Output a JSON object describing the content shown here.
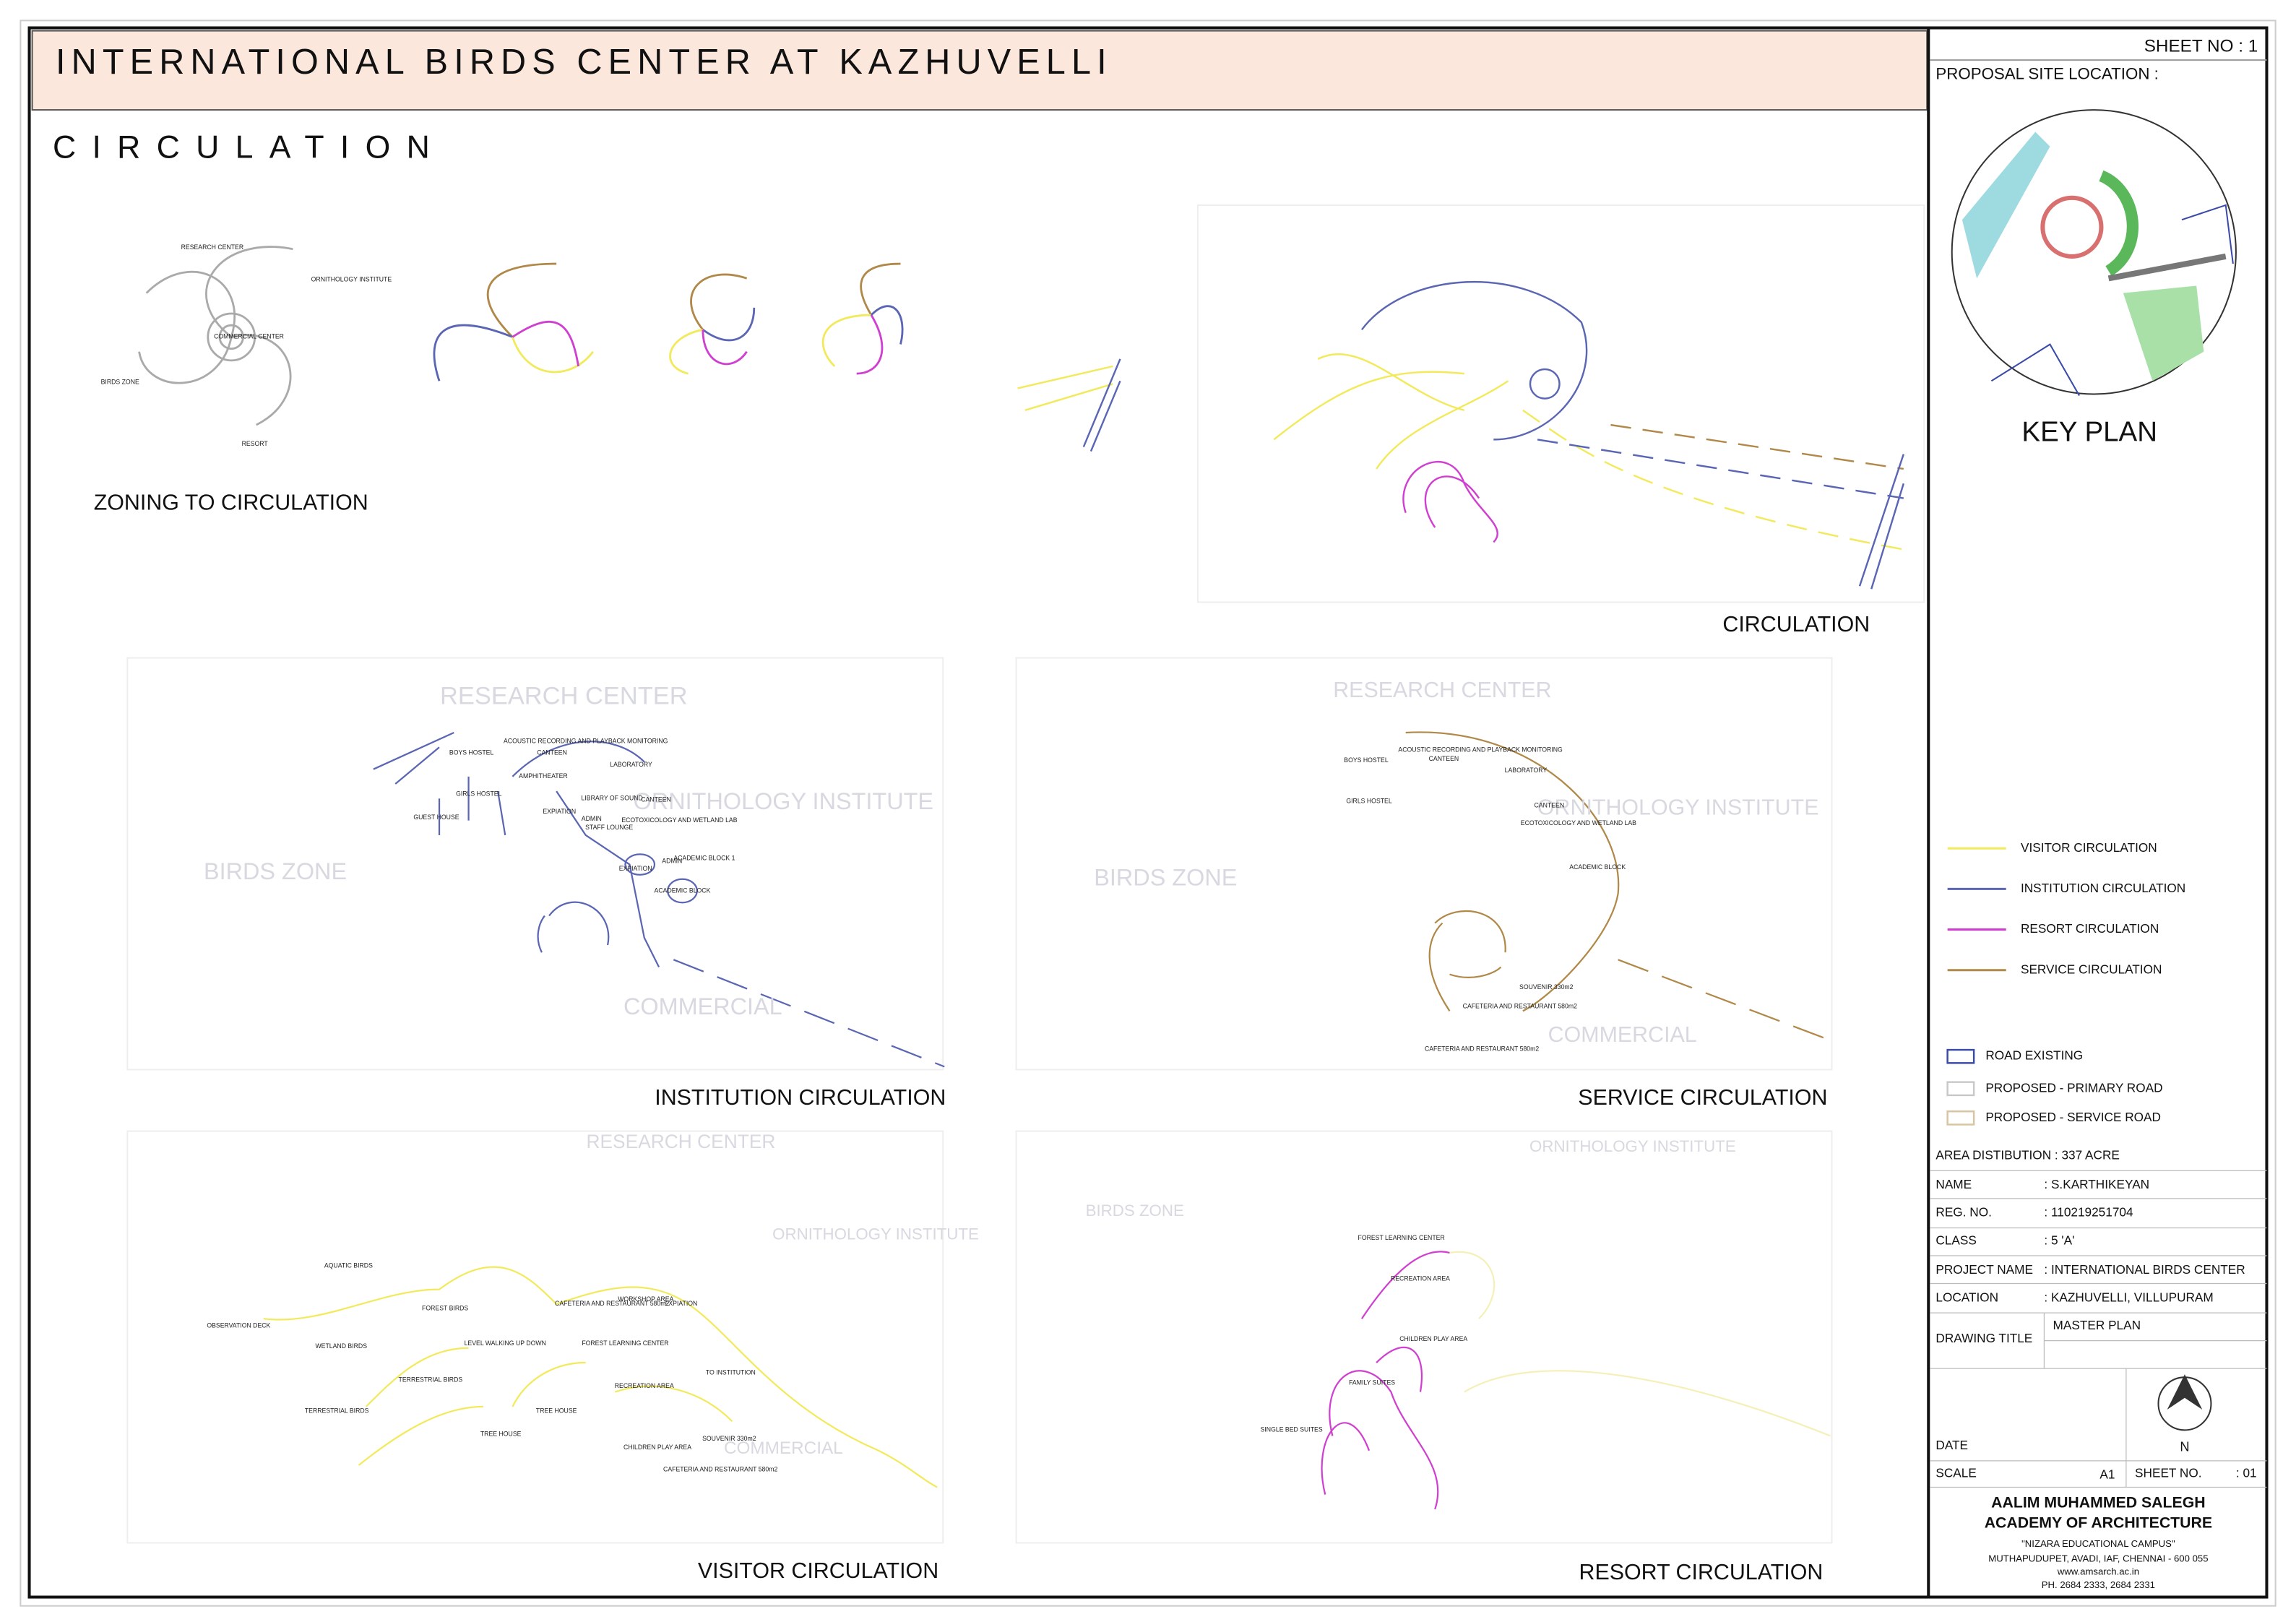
{
  "header": {
    "title": "INTERNATIONAL BIRDS CENTER AT KAZHUVELLI",
    "section": "CIRCULATION"
  },
  "panels": {
    "zoning": {
      "caption": "ZONING TO CIRCULATION",
      "labels": [
        "RESEARCH CENTER",
        "ORNITHOLOGY INSTITUTE",
        "BIRDS ZONE",
        "RESORT",
        "COMMERCIAL CENTER"
      ]
    },
    "circulation": {
      "caption": "CIRCULATION"
    },
    "institution": {
      "caption": "INSTITUTION CIRCULATION",
      "zones": [
        "RESEARCH CENTER",
        "ORNITHOLOGY INSTITUTE",
        "BIRDS ZONE",
        "COMMERCIAL"
      ],
      "labels": [
        "BOYS HOSTEL",
        "GIRLS HOSTEL",
        "GUEST HOUSE",
        "CANTEEN",
        "AMPHITHEATER",
        "ACOUSTIC RECORDING AND PLAYBACK MONITORING",
        "LABORATORY",
        "LIBRARY OF SOUND",
        "EXPIATION",
        "ADMIN",
        "STAFF LOUNGE",
        "CANTEEN",
        "ECOTOXICOLOGY AND WETLAND LAB",
        "ACADEMIC BLOCK 1",
        "ADMIN",
        "ACADEMIC BLOCK",
        "EXPIATION"
      ]
    },
    "service": {
      "caption": "SERVICE CIRCULATION",
      "zones": [
        "RESEARCH CENTER",
        "ORNITHOLOGY INSTITUTE",
        "BIRDS ZONE",
        "COMMERCIAL"
      ],
      "labels": [
        "BOYS HOSTEL",
        "GIRLS HOSTEL",
        "CANTEEN",
        "ACOUSTIC RECORDING AND PLAYBACK MONITORING",
        "LABORATORY",
        "CANTEEN",
        "ECOTOXICOLOGY AND WETLAND LAB",
        "ACADEMIC BLOCK",
        "SOUVENIR 330m2",
        "CAFETERIA AND RESTAURANT 580m2",
        "CAFETERIA AND RESTAURANT 580m2"
      ]
    },
    "visitor": {
      "caption": "VISITOR CIRCULATION",
      "zones": [
        "RESEARCH CENTER",
        "ORNITHOLOGY INSTITUTE",
        "COMMERCIAL"
      ],
      "labels": [
        "AQUATIC BIRDS",
        "OBSERVATION DECK",
        "WETLAND BIRDS",
        "FOREST BIRDS",
        "TERRESTRIAL BIRDS",
        "TERRESTRIAL BIRDS",
        "LEVEL WALKING UP DOWN",
        "TREE HOUSE",
        "TREE HOUSE",
        "CAFETERIA AND RESTAURANT 580m2",
        "WORKSHOP AREA",
        "EXPIATION",
        "FOREST LEARNING CENTER",
        "RECREATION AREA",
        "TO INSTITUTION",
        "CHILDREN PLAY AREA",
        "SOUVENIR 330m2",
        "CAFETERIA AND RESTAURANT 580m2"
      ]
    },
    "resort": {
      "caption": "RESORT CIRCULATION",
      "zones": [
        "BIRDS ZONE",
        "ORNITHOLOGY INSTITUTE"
      ],
      "labels": [
        "FOREST LEARNING CENTER",
        "RECREATION AREA",
        "CHILDREN PLAY AREA",
        "FAMILY SUITES",
        "SINGLE BED SUITES"
      ]
    }
  },
  "sidebar": {
    "sheet": "SHEET NO : 1",
    "site_location": "PROPOSAL SITE LOCATION :",
    "key_plan": "KEY PLAN",
    "legend": [
      {
        "name": "VISITOR CIRCULATION",
        "color": "#f2ea5c"
      },
      {
        "name": "INSTITUTION CIRCULATION",
        "color": "#5a66b4"
      },
      {
        "name": "RESORT CIRCULATION",
        "color": "#d040d0"
      },
      {
        "name": "SERVICE CIRCULATION",
        "color": "#b08848"
      }
    ],
    "roads": [
      {
        "name": "ROAD EXISTING",
        "color": "#3a4aa8"
      },
      {
        "name": "PROPOSED - PRIMARY ROAD",
        "color": "#c8c8c8"
      },
      {
        "name": "PROPOSED - SERVICE ROAD",
        "color": "#d8c4a0"
      }
    ],
    "area": "AREA DISTIBUTION  : 337 ACRE"
  },
  "title_block": {
    "rows": [
      [
        "NAME",
        ": S.KARTHIKEYAN"
      ],
      [
        "REG. NO.",
        ": 110219251704"
      ],
      [
        "CLASS",
        ": 5 'A'"
      ],
      [
        "PROJECT NAME",
        ": INTERNATIONAL  BIRDS CENTER"
      ],
      [
        "LOCATION",
        ": KAZHUVELLI, VILLUPURAM"
      ],
      [
        "DRAWING TITLE",
        "MASTER PLAN"
      ]
    ],
    "date": "DATE",
    "scale": "SCALE",
    "scale_value": "A1",
    "sheet_no": "SHEET NO.",
    "sheet_value": ": 01",
    "north": "N",
    "academy": [
      "AALIM MUHAMMED SALEGH",
      "ACADEMY OF ARCHITECTURE",
      "\"NIZARA EDUCATIONAL CAMPUS\"",
      "MUTHAPUDUPET, AVADI, IAF, CHENNAI - 600 055",
      "www.amsarch.ac.in",
      "PH. 2684 2333, 2684 2331"
    ]
  }
}
